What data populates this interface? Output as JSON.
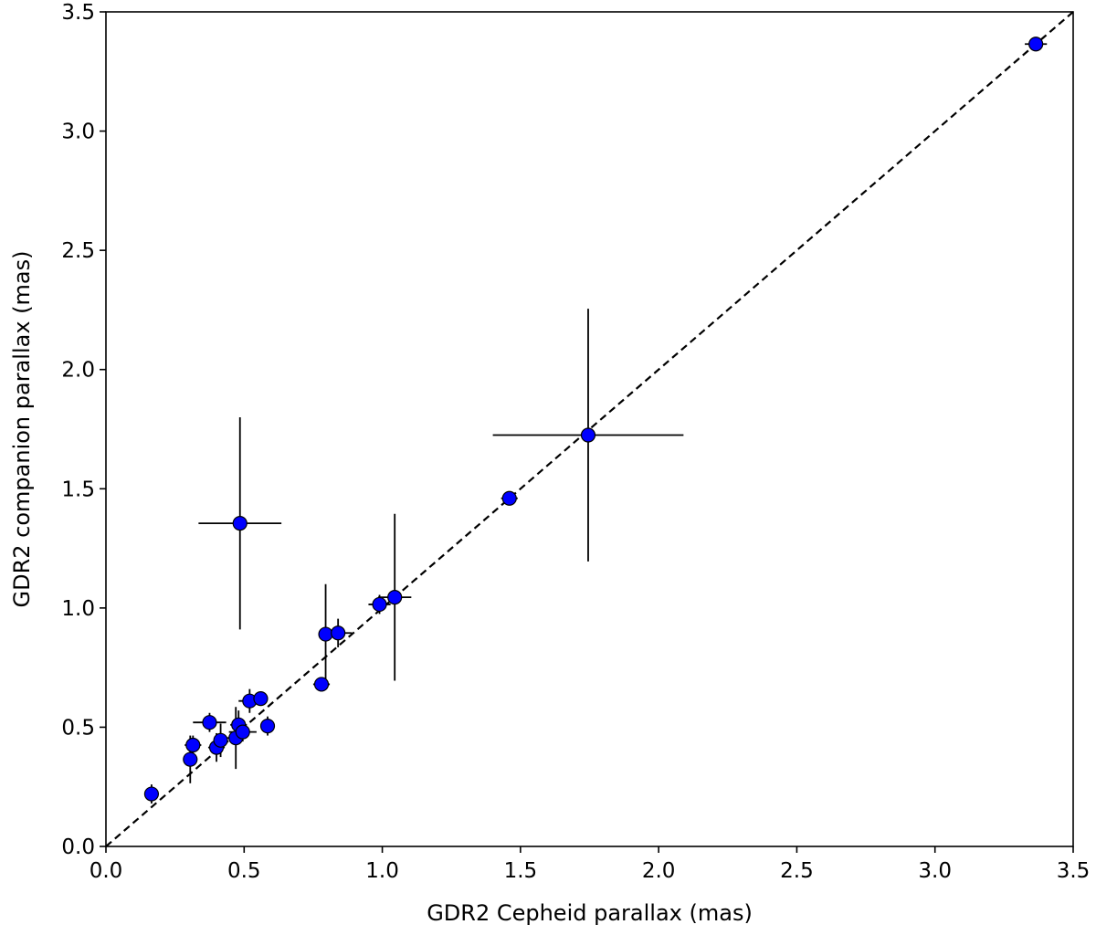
{
  "chart_data": {
    "type": "scatter",
    "xlabel": "GDR2 Cepheid parallax (mas)",
    "ylabel": "GDR2 companion parallax (mas)",
    "xlim": [
      0.0,
      3.5
    ],
    "ylim": [
      0.0,
      3.5
    ],
    "x_ticks": [
      "0.0",
      "0.5",
      "1.0",
      "1.5",
      "2.0",
      "2.5",
      "3.0",
      "3.5"
    ],
    "y_ticks": [
      "0.0",
      "0.5",
      "1.0",
      "1.5",
      "2.0",
      "2.5",
      "3.0",
      "3.5"
    ],
    "grid": false,
    "reference_line": {
      "type": "y=x",
      "style": "dashed",
      "color": "#000000"
    },
    "marker_color": "#0000ff",
    "points": [
      {
        "x": 0.165,
        "y": 0.22,
        "xerr": 0.02,
        "yerr": 0.04
      },
      {
        "x": 0.305,
        "y": 0.365,
        "xerr": 0.02,
        "yerr": 0.1
      },
      {
        "x": 0.315,
        "y": 0.425,
        "xerr": 0.03,
        "yerr": 0.04
      },
      {
        "x": 0.375,
        "y": 0.52,
        "xerr": 0.06,
        "yerr": 0.04
      },
      {
        "x": 0.4,
        "y": 0.415,
        "xerr": 0.03,
        "yerr": 0.06
      },
      {
        "x": 0.415,
        "y": 0.445,
        "xerr": 0.02,
        "yerr": 0.07
      },
      {
        "x": 0.47,
        "y": 0.455,
        "xerr": 0.03,
        "yerr": 0.13
      },
      {
        "x": 0.48,
        "y": 0.51,
        "xerr": 0.03,
        "yerr": 0.06
      },
      {
        "x": 0.495,
        "y": 0.48,
        "xerr": 0.05,
        "yerr": 0.04
      },
      {
        "x": 0.52,
        "y": 0.61,
        "xerr": 0.04,
        "yerr": 0.05
      },
      {
        "x": 0.56,
        "y": 0.62,
        "xerr": 0.02,
        "yerr": 0.02
      },
      {
        "x": 0.585,
        "y": 0.505,
        "xerr": 0.02,
        "yerr": 0.04
      },
      {
        "x": 0.485,
        "y": 1.355,
        "xerr": 0.15,
        "yerr": 0.445
      },
      {
        "x": 0.78,
        "y": 0.68,
        "xerr": 0.03,
        "yerr": 0.02
      },
      {
        "x": 0.795,
        "y": 0.89,
        "xerr": 0.02,
        "yerr": 0.21
      },
      {
        "x": 0.84,
        "y": 0.895,
        "xerr": 0.05,
        "yerr": 0.06
      },
      {
        "x": 0.99,
        "y": 1.015,
        "xerr": 0.04,
        "yerr": 0.04
      },
      {
        "x": 1.045,
        "y": 1.045,
        "xerr": 0.06,
        "yerr": 0.35
      },
      {
        "x": 1.46,
        "y": 1.46,
        "xerr": 0.03,
        "yerr": 0.02
      },
      {
        "x": 1.745,
        "y": 1.725,
        "xerr": 0.345,
        "yerr": 0.53
      },
      {
        "x": 3.365,
        "y": 3.365,
        "xerr": 0.04,
        "yerr": 0.03
      }
    ]
  }
}
